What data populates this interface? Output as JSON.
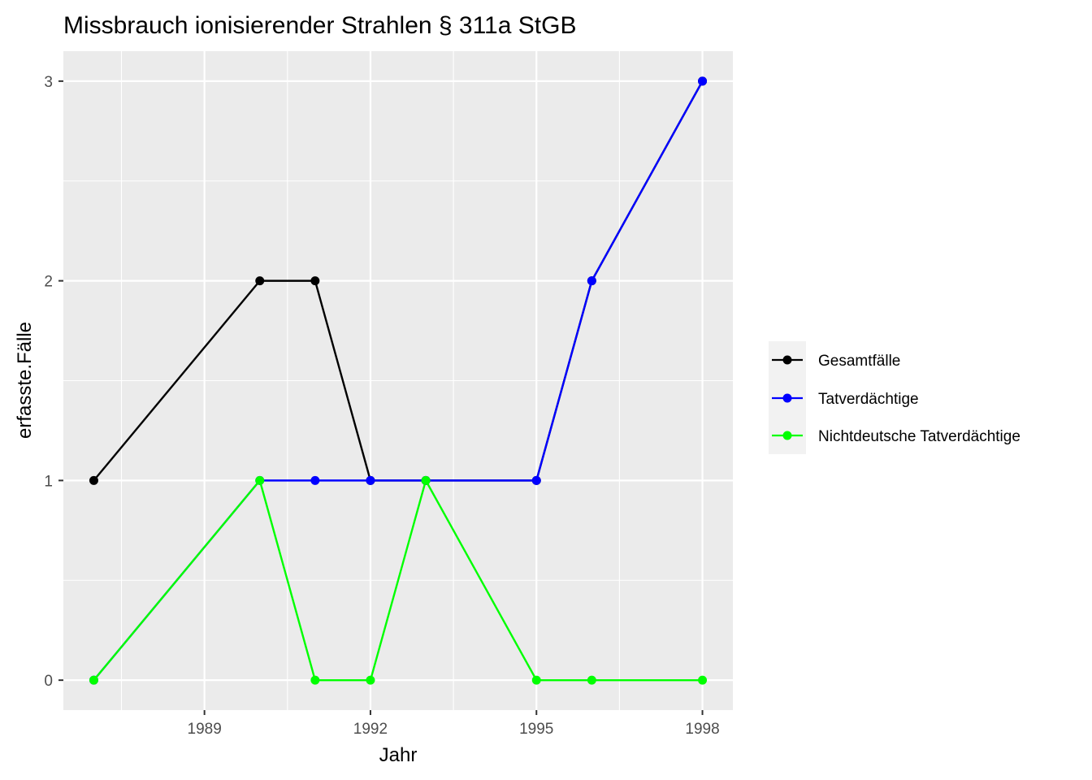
{
  "chart_data": {
    "type": "line",
    "title": "Missbrauch ionisierender Strahlen § 311a StGB",
    "xlabel": "Jahr",
    "ylabel": "erfasste.Fälle",
    "x": [
      1987,
      1990,
      1991,
      1992,
      1993,
      1995,
      1996,
      1998
    ],
    "xlim": [
      1986.45,
      1998.55
    ],
    "ylim": [
      -0.15,
      3.15
    ],
    "x_ticks": [
      1989,
      1992,
      1995,
      1998
    ],
    "x_minor_ticks": [
      1987.5,
      1990.5,
      1993.5,
      1996.5
    ],
    "y_ticks": [
      0,
      1,
      2,
      3
    ],
    "y_minor_ticks": [
      0.5,
      1.5,
      2.5
    ],
    "grid": true,
    "legend_position": "right",
    "series": [
      {
        "name": "Gesamtfälle",
        "color": "#000000",
        "values": [
          1,
          2,
          2,
          1,
          1,
          1,
          2,
          3
        ]
      },
      {
        "name": "Tatverdächtige",
        "color": "#0000ff",
        "values": [
          0,
          1,
          1,
          1,
          1,
          1,
          2,
          3
        ]
      },
      {
        "name": "Nichtdeutsche Tatverdächtige",
        "color": "#00ff00",
        "values": [
          0,
          1,
          0,
          0,
          1,
          0,
          0,
          0
        ]
      }
    ]
  }
}
